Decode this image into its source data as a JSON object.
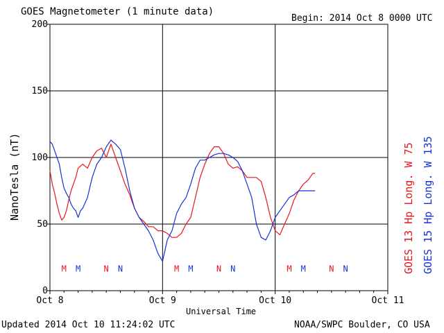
{
  "header": {
    "title": "GOES Magnetometer (1 minute data)",
    "begin": "Begin:  2014 Oct 8 0000 UTC"
  },
  "footer": {
    "updated": "Updated 2014 Oct 10 11:24:02 UTC",
    "credit": "NOAA/SWPC Boulder, CO USA"
  },
  "colors": {
    "goes13": "#e8141a",
    "goes15": "#1431d8",
    "grid": "#000000"
  },
  "chart_data": {
    "type": "line",
    "xlabel": "Universal Time",
    "ylabel": "NanoTesla (nT)",
    "ylim": [
      0,
      200
    ],
    "yticks": [
      0,
      50,
      100,
      150,
      200
    ],
    "xlim": [
      0,
      72
    ],
    "x_unit": "hours since 2014 Oct 8 0000 UTC",
    "xticks": [
      {
        "x": 0,
        "label": "Oct 8"
      },
      {
        "x": 24,
        "label": "Oct 9"
      },
      {
        "x": 48,
        "label": "Oct 10"
      },
      {
        "x": 72,
        "label": "Oct 11"
      }
    ],
    "grid": true,
    "series": [
      {
        "name": "GOES 13 Hp",
        "legend": "GOES 13 Hp  Long. W 75",
        "color": "#e8141a",
        "x": [
          0,
          0.5,
          1,
          1.5,
          2,
          2.5,
          3,
          3.5,
          4,
          4.5,
          5,
          5.5,
          6,
          7,
          8,
          9,
          10,
          11,
          12,
          13,
          14,
          15,
          16,
          17,
          18,
          19,
          20,
          21,
          22,
          23,
          24,
          25,
          26,
          27,
          28,
          29,
          30,
          31,
          32,
          33,
          34,
          35,
          36,
          37,
          38,
          39,
          40,
          41,
          42,
          43,
          44,
          45,
          46,
          47,
          48,
          49,
          50,
          51,
          52,
          53,
          54,
          55,
          56,
          56.5
        ],
        "y": [
          90,
          80,
          73,
          65,
          58,
          53,
          55,
          60,
          68,
          75,
          80,
          85,
          92,
          95,
          92,
          100,
          105,
          107,
          100,
          110,
          100,
          90,
          80,
          72,
          62,
          55,
          52,
          48,
          48,
          45,
          45,
          43,
          40,
          40,
          43,
          50,
          55,
          70,
          85,
          95,
          103,
          108,
          108,
          103,
          95,
          92,
          93,
          90,
          85,
          85,
          85,
          82,
          70,
          55,
          45,
          42,
          50,
          58,
          68,
          75,
          80,
          83,
          88,
          88
        ]
      },
      {
        "name": "GOES 15 Hp",
        "legend": "GOES 15 Hp  Long. W 135",
        "color": "#1431d8",
        "x": [
          0,
          0.5,
          1,
          1.5,
          2,
          2.5,
          3,
          3.5,
          4,
          4.5,
          5,
          5.5,
          6,
          6.5,
          7,
          8,
          9,
          10,
          11,
          12,
          13,
          14,
          15,
          16,
          17,
          18,
          19,
          20,
          21,
          22,
          23,
          24,
          25,
          26,
          27,
          28,
          29,
          30,
          31,
          32,
          33,
          34,
          35,
          36,
          37,
          38,
          39,
          40,
          41,
          42,
          43,
          44,
          45,
          46,
          47,
          48,
          49,
          50,
          51,
          52,
          53,
          54,
          55,
          56,
          56.5
        ],
        "y": [
          112,
          110,
          105,
          100,
          95,
          85,
          77,
          73,
          70,
          65,
          62,
          60,
          55,
          60,
          62,
          70,
          85,
          95,
          100,
          108,
          113,
          110,
          106,
          92,
          75,
          62,
          55,
          50,
          45,
          38,
          28,
          22,
          38,
          45,
          58,
          65,
          70,
          80,
          92,
          98,
          98,
          100,
          102,
          103,
          103,
          102,
          100,
          97,
          90,
          80,
          70,
          50,
          40,
          38,
          45,
          55,
          60,
          65,
          70,
          72,
          75,
          75,
          75,
          75,
          75
        ]
      }
    ],
    "markers": [
      {
        "x": 3,
        "label": "M",
        "color": "#e8141a"
      },
      {
        "x": 6,
        "label": "M",
        "color": "#1431d8"
      },
      {
        "x": 12,
        "label": "N",
        "color": "#e8141a"
      },
      {
        "x": 15,
        "label": "N",
        "color": "#1431d8"
      },
      {
        "x": 27,
        "label": "M",
        "color": "#e8141a"
      },
      {
        "x": 30,
        "label": "M",
        "color": "#1431d8"
      },
      {
        "x": 36,
        "label": "N",
        "color": "#e8141a"
      },
      {
        "x": 39,
        "label": "N",
        "color": "#1431d8"
      },
      {
        "x": 51,
        "label": "M",
        "color": "#e8141a"
      },
      {
        "x": 54,
        "label": "M",
        "color": "#1431d8"
      },
      {
        "x": 60,
        "label": "N",
        "color": "#e8141a"
      },
      {
        "x": 63,
        "label": "N",
        "color": "#1431d8"
      }
    ],
    "markers_y": 17
  }
}
